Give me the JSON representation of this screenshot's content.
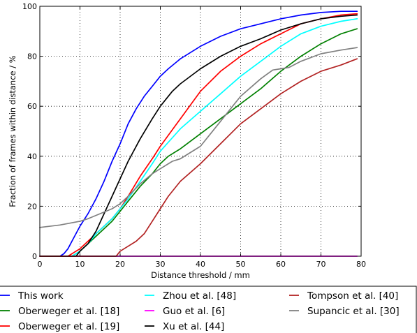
{
  "chart_data": {
    "type": "line",
    "xlabel": "Distance threshold / mm",
    "ylabel": "Fraction of frames within distance / %",
    "xlim": [
      0,
      80
    ],
    "ylim": [
      0,
      100
    ],
    "xticks": [
      0,
      10,
      20,
      30,
      40,
      50,
      60,
      70,
      80
    ],
    "yticks": [
      0,
      20,
      40,
      60,
      80,
      100
    ],
    "grid": true,
    "legend_position": "bottom",
    "series": [
      {
        "name": "This work",
        "color": "#0000ff",
        "x": [
          0,
          5,
          6,
          7,
          8,
          10,
          12,
          14,
          16,
          18,
          20,
          22,
          24,
          26,
          28,
          30,
          32,
          35,
          40,
          45,
          50,
          55,
          60,
          65,
          70,
          75,
          79
        ],
        "y": [
          0,
          0,
          1,
          3,
          6,
          12,
          17,
          23,
          30,
          38,
          45,
          53,
          59,
          64,
          68,
          72,
          75,
          79,
          84,
          88,
          91,
          93,
          95,
          96.5,
          97.5,
          98,
          98
        ]
      },
      {
        "name": "Oberweger et al. [18]",
        "color": "#008000",
        "x": [
          0,
          8,
          10,
          12,
          14,
          16,
          18,
          20,
          22,
          25,
          28,
          30,
          32,
          35,
          40,
          45,
          50,
          55,
          60,
          65,
          70,
          75,
          79
        ],
        "y": [
          0,
          0,
          2,
          5,
          8,
          11,
          14,
          18,
          22,
          28,
          33,
          37,
          40,
          43,
          49,
          55,
          61,
          67,
          74,
          80,
          85,
          89,
          91
        ]
      },
      {
        "name": "Oberweger et al. [19]",
        "color": "#ff0000",
        "x": [
          0,
          7,
          10,
          12,
          14,
          16,
          18,
          20,
          22,
          25,
          28,
          30,
          35,
          40,
          45,
          50,
          55,
          60,
          65,
          70,
          75,
          79
        ],
        "y": [
          0,
          0,
          3,
          6,
          9,
          12,
          15,
          19,
          24,
          32,
          39,
          44,
          55,
          66,
          74,
          80,
          85,
          89,
          93,
          95,
          96.5,
          97
        ]
      },
      {
        "name": "Zhou et al. [48]",
        "color": "#00ffff",
        "x": [
          0,
          8,
          10,
          12,
          14,
          16,
          18,
          20,
          22,
          25,
          28,
          30,
          35,
          40,
          45,
          50,
          55,
          60,
          65,
          70,
          75,
          79
        ],
        "y": [
          0,
          0,
          2,
          5,
          9,
          12,
          15,
          19,
          23,
          30,
          37,
          42,
          51,
          58,
          65,
          72,
          78,
          84,
          89,
          92,
          94,
          95
        ]
      },
      {
        "name": "Guo et al. [6]",
        "color": "#ff00ff",
        "x": [
          0,
          79
        ],
        "y": [
          0,
          0
        ]
      },
      {
        "name": "Xu et al. [44]",
        "color": "#000000",
        "x": [
          0,
          9,
          10,
          12,
          14,
          16,
          18,
          20,
          22,
          25,
          28,
          30,
          33,
          35,
          40,
          45,
          50,
          55,
          60,
          65,
          70,
          75,
          79
        ],
        "y": [
          0,
          0,
          2,
          5,
          10,
          17,
          24,
          31,
          38,
          47,
          55,
          60,
          66,
          69,
          75,
          80,
          84,
          87,
          90.5,
          93,
          95,
          96,
          96.5
        ]
      },
      {
        "name": "Tompson et al. [40]",
        "color": "#b22222",
        "x": [
          0,
          19,
          20,
          22,
          24,
          26,
          28,
          30,
          32,
          35,
          40,
          45,
          50,
          55,
          60,
          65,
          70,
          75,
          79
        ],
        "y": [
          0,
          0,
          2,
          4,
          6,
          9,
          14,
          19,
          24,
          30,
          37,
          45,
          53,
          59,
          65,
          70,
          74,
          76.5,
          79
        ]
      },
      {
        "name": "Supancic et al. [30]",
        "color": "#808080",
        "x": [
          0,
          5,
          10,
          12,
          15,
          18,
          20,
          22,
          25,
          28,
          30,
          33,
          35,
          40,
          45,
          50,
          55,
          58,
          60,
          62,
          65,
          70,
          75,
          79
        ],
        "y": [
          11.5,
          12.5,
          14,
          15,
          17,
          19,
          21,
          24,
          29,
          33,
          35,
          38,
          39,
          44,
          54,
          64,
          71,
          74.5,
          75,
          75.5,
          78,
          81,
          82.5,
          83.5
        ]
      }
    ]
  }
}
